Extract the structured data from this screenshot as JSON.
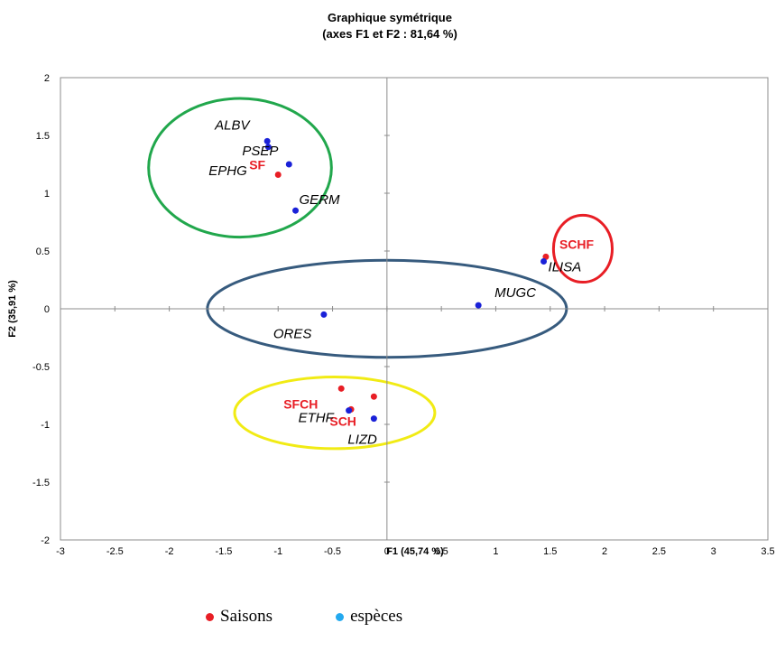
{
  "chart_data": {
    "type": "scatter",
    "title": "Graphique symétrique",
    "subtitle": "(axes F1 et F2 : 81,64 %)",
    "xlabel": "F1 (45,74 %)",
    "ylabel": "F2 (35,91 %)",
    "xlim": [
      -3,
      3.5
    ],
    "ylim": [
      -2,
      2
    ],
    "x_ticks": [
      "-3",
      "-2.5",
      "-2",
      "-1.5",
      "-1",
      "-0.5",
      "0",
      "0.5",
      "1",
      "1.5",
      "2",
      "2.5",
      "3",
      "3.5"
    ],
    "y_ticks": [
      "-2",
      "-1.5",
      "-1",
      "-0.5",
      "0",
      "0.5",
      "1",
      "1.5",
      "2"
    ],
    "grid": false,
    "series": [
      {
        "name": "Saisons",
        "color": "#e81e25",
        "points": [
          {
            "label": "SF",
            "x": -1.0,
            "y": 1.16
          },
          {
            "label": "SCHF",
            "x": 1.46,
            "y": 0.45
          },
          {
            "label": "SFCH",
            "x": -0.42,
            "y": -0.69
          },
          {
            "label": "SCH",
            "x": -0.12,
            "y": -0.76
          },
          {
            "label": "",
            "x": -0.33,
            "y": -0.87
          }
        ]
      },
      {
        "name": "espèces",
        "color": "#1a21d8",
        "points": [
          {
            "label": "ALBV",
            "x": -1.1,
            "y": 1.45
          },
          {
            "label": "PSEP",
            "x": -1.09,
            "y": 1.4
          },
          {
            "label": "EPHG",
            "x": -0.9,
            "y": 1.25
          },
          {
            "label": "GERM",
            "x": -0.84,
            "y": 0.85
          },
          {
            "label": "ILISA",
            "x": 1.44,
            "y": 0.41
          },
          {
            "label": "MUGC",
            "x": 0.84,
            "y": 0.03
          },
          {
            "label": "ORES",
            "x": -0.58,
            "y": -0.05
          },
          {
            "label": "ETHF",
            "x": -0.35,
            "y": -0.88
          },
          {
            "label": "LIZD",
            "x": -0.12,
            "y": -0.95
          }
        ]
      }
    ],
    "ellipses": [
      {
        "cx": -1.35,
        "cy": 1.22,
        "rx": 0.84,
        "ry": 0.6,
        "color": "#21a74c"
      },
      {
        "cx": 1.8,
        "cy": 0.52,
        "rx": 0.27,
        "ry": 0.29,
        "color": "#e81e25"
      },
      {
        "cx": 0.0,
        "cy": 0.0,
        "rx": 1.65,
        "ry": 0.42,
        "color": "#375b7e"
      },
      {
        "cx": -0.48,
        "cy": -0.9,
        "rx": 0.92,
        "ry": 0.31,
        "color": "#f1eb14"
      }
    ],
    "legend": {
      "placement": "bottom",
      "items": [
        {
          "label": "Saisons",
          "color": "#e81e25"
        },
        {
          "label": "espèces",
          "color": "#23a9ef"
        }
      ]
    }
  }
}
